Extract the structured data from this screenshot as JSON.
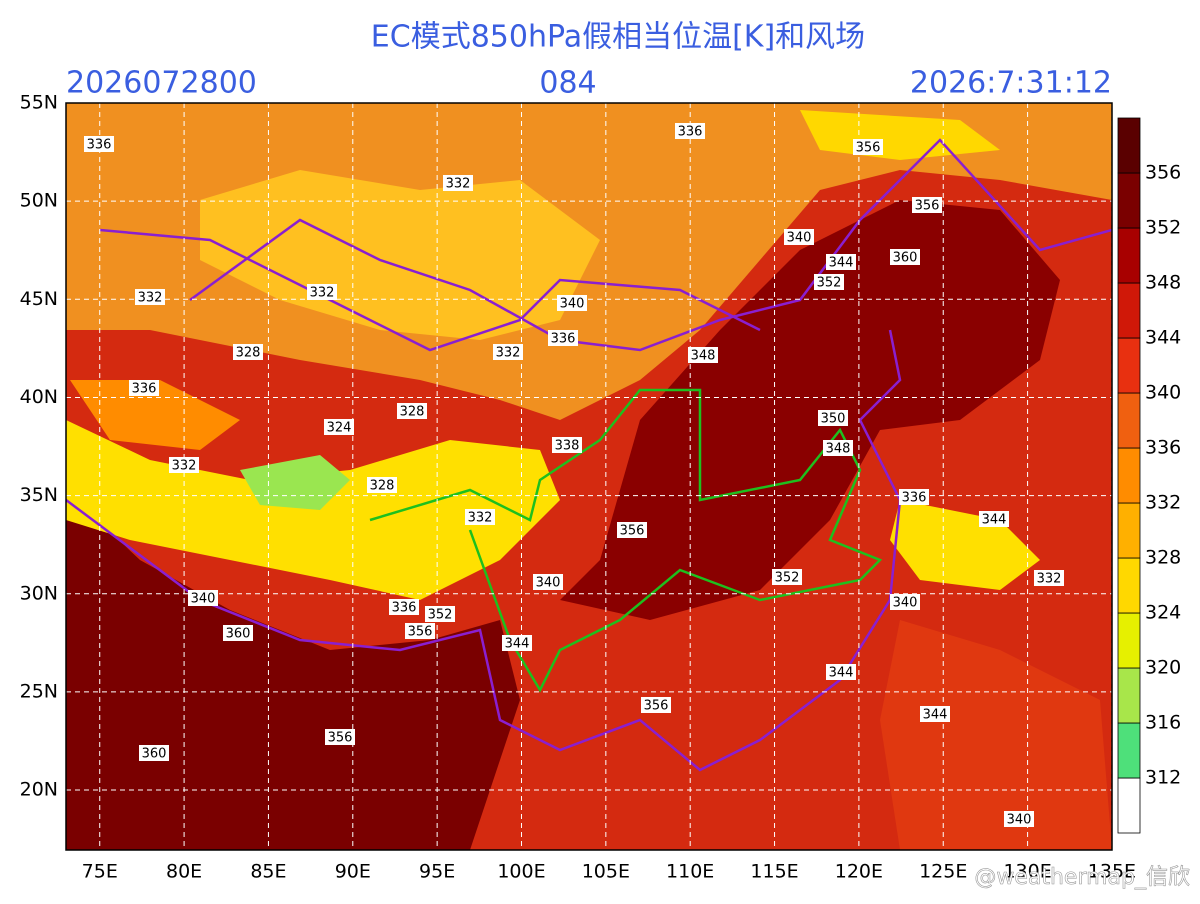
{
  "title": "EC模式850hPa假相当位温[K]和风场",
  "header": {
    "run": "2026072800",
    "forecast_hour": "084",
    "valid": "2026:7:31:12"
  },
  "lat_labels": [
    "55N",
    "50N",
    "45N",
    "40N",
    "35N",
    "30N",
    "25N",
    "20N"
  ],
  "lon_labels": [
    "75E",
    "80E",
    "85E",
    "90E",
    "95E",
    "100E",
    "105E",
    "110E",
    "115E",
    "120E",
    "125E",
    "130E",
    "135E"
  ],
  "colorbar": {
    "labels": [
      "312",
      "316",
      "320",
      "324",
      "328",
      "332",
      "336",
      "340",
      "344",
      "348",
      "352",
      "356"
    ],
    "colors": [
      "#ffffff",
      "#4ee07a",
      "#a8e64a",
      "#e6f000",
      "#ffd800",
      "#ffb000",
      "#ff8c00",
      "#f06010",
      "#e83010",
      "#d01808",
      "#a80000",
      "#7a0000",
      "#5a0000"
    ]
  },
  "contour_labels": [
    "336",
    "332",
    "336",
    "332",
    "332",
    "340",
    "336",
    "332",
    "328",
    "336",
    "324",
    "328",
    "332",
    "328",
    "332",
    "338",
    "348",
    "340",
    "344",
    "352",
    "360",
    "356",
    "350",
    "348",
    "356",
    "356",
    "352",
    "340",
    "344",
    "336",
    "344",
    "332",
    "344",
    "340",
    "356",
    "340",
    "360",
    "340",
    "336",
    "356",
    "352",
    "344",
    "360",
    "356"
  ],
  "watermark": "@weathermap_信欣"
}
